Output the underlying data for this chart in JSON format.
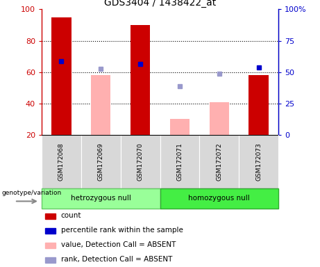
{
  "title": "GDS3404 / 1438422_at",
  "samples": [
    "GSM172068",
    "GSM172069",
    "GSM172070",
    "GSM172071",
    "GSM172072",
    "GSM172073"
  ],
  "groups": [
    "hetrozygous null",
    "homozygous null"
  ],
  "ylim_left": [
    20,
    100
  ],
  "ylim_right": [
    0,
    100
  ],
  "yticks_left": [
    20,
    40,
    60,
    80,
    100
  ],
  "yticks_right": [
    0,
    25,
    50,
    75,
    100
  ],
  "ytick_labels_left": [
    "20",
    "40",
    "60",
    "80",
    "100"
  ],
  "ytick_labels_right": [
    "0",
    "25",
    "50",
    "75",
    "100%"
  ],
  "red_bars": [
    95,
    null,
    90,
    null,
    null,
    58
  ],
  "pink_bars": [
    null,
    58,
    null,
    30,
    41,
    null
  ],
  "blue_squares_left_val": [
    67,
    null,
    65,
    null,
    null,
    63
  ],
  "light_blue_squares_left_val": [
    null,
    62,
    null,
    51,
    59,
    null
  ],
  "red_color": "#cc0000",
  "pink_color": "#ffb0b0",
  "blue_color": "#0000cc",
  "light_blue_color": "#9999cc",
  "legend_items": [
    "count",
    "percentile rank within the sample",
    "value, Detection Call = ABSENT",
    "rank, Detection Call = ABSENT"
  ],
  "legend_colors": [
    "#cc0000",
    "#0000cc",
    "#ffb0b0",
    "#9999cc"
  ],
  "xlabel": "genotype/variation",
  "grid_lines": [
    40,
    60,
    80
  ],
  "background_color": "#d8d8d8",
  "group1_color": "#99ff99",
  "group2_color": "#44ee44",
  "group1_label": "hetrozygous null",
  "group2_label": "homozygous null"
}
